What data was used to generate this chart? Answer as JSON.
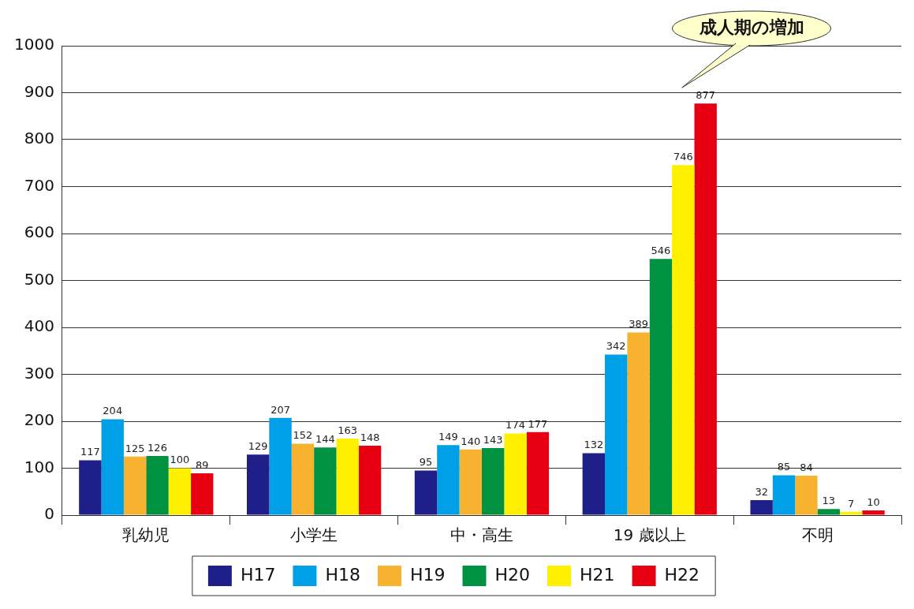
{
  "chart_data": {
    "type": "bar",
    "categories": [
      "乳幼児",
      "小学生",
      "中・高生",
      "19 歳以上",
      "不明"
    ],
    "series": [
      {
        "name": "H17",
        "color": "#1f1f8a",
        "values": [
          117,
          129,
          95,
          132,
          32
        ]
      },
      {
        "name": "H18",
        "color": "#00a0e9",
        "values": [
          204,
          207,
          149,
          342,
          85
        ]
      },
      {
        "name": "H19",
        "color": "#f7b230",
        "values": [
          125,
          152,
          140,
          389,
          84
        ]
      },
      {
        "name": "H20",
        "color": "#009240",
        "values": [
          126,
          144,
          143,
          546,
          13
        ]
      },
      {
        "name": "H21",
        "color": "#fff000",
        "values": [
          100,
          163,
          174,
          746,
          7
        ]
      },
      {
        "name": "H22",
        "color": "#e60012",
        "values": [
          89,
          148,
          177,
          877,
          10
        ]
      }
    ],
    "ylim": [
      0,
      1000
    ],
    "yticks": [
      0,
      100,
      200,
      300,
      400,
      500,
      600,
      700,
      800,
      900,
      1000
    ],
    "grid": "y",
    "legend": "bottom",
    "data_labels": true,
    "annotations": [
      "成人期の増加"
    ]
  }
}
